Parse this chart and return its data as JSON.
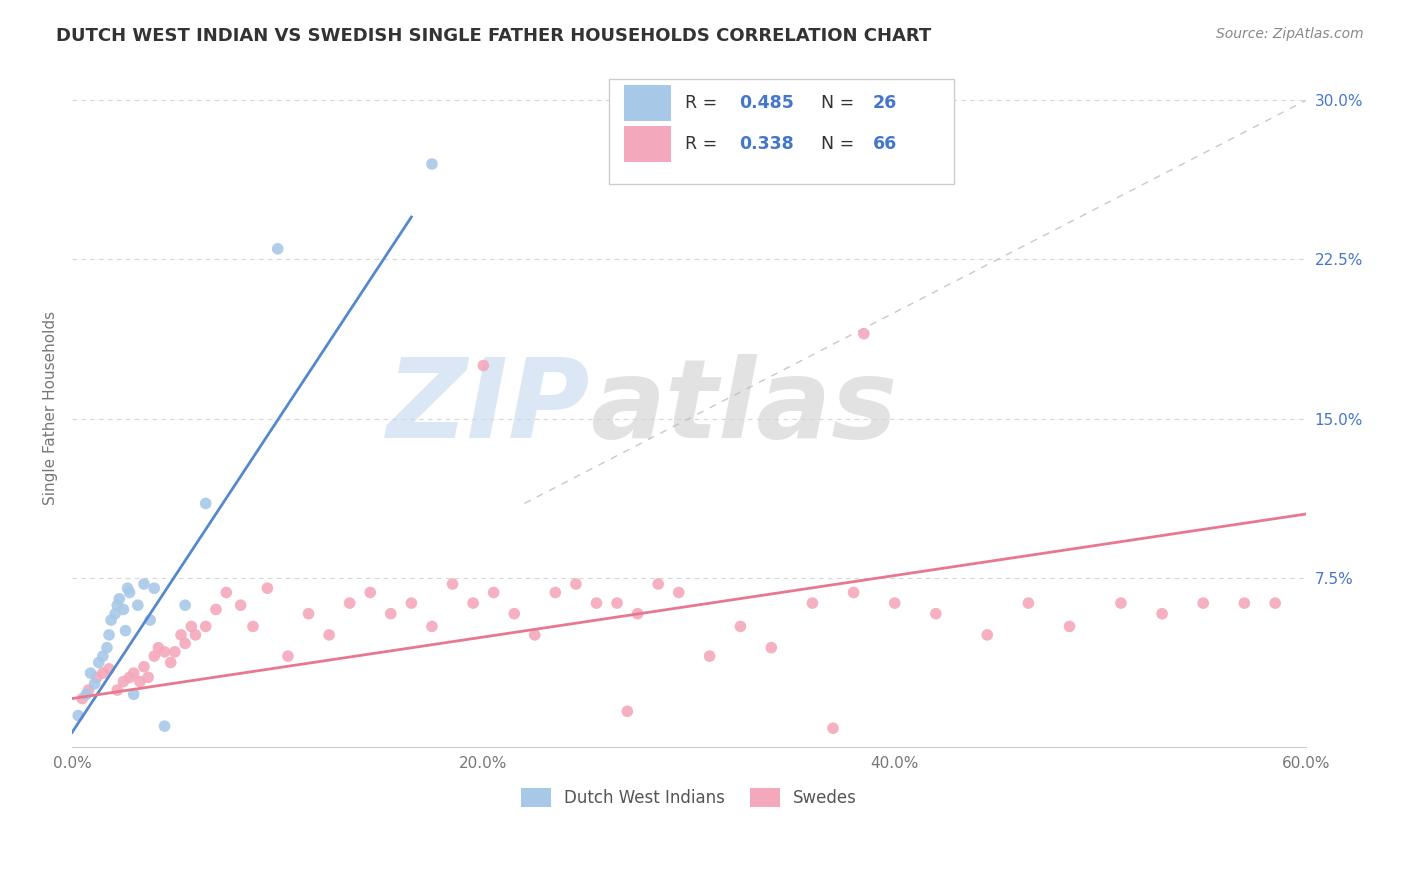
{
  "title": "DUTCH WEST INDIAN VS SWEDISH SINGLE FATHER HOUSEHOLDS CORRELATION CHART",
  "source": "Source: ZipAtlas.com",
  "ylabel": "Single Father Households",
  "watermark_zip": "ZIP",
  "watermark_atlas": "atlas",
  "xlim": [
    0.0,
    0.6
  ],
  "ylim": [
    -0.005,
    0.315
  ],
  "xticks": [
    0.0,
    0.1,
    0.2,
    0.3,
    0.4,
    0.5,
    0.6
  ],
  "xtick_labels": [
    "0.0%",
    "",
    "20.0%",
    "",
    "40.0%",
    "",
    "60.0%"
  ],
  "yticks_right": [
    0.3,
    0.225,
    0.15,
    0.075
  ],
  "ytick_right_labels": [
    "30.0%",
    "22.5%",
    "15.0%",
    "7.5%"
  ],
  "legend_label_blue": "Dutch West Indians",
  "legend_label_pink": "Swedes",
  "blue_color": "#a8c8e8",
  "pink_color": "#f4a8bc",
  "blue_line_color": "#5588cc",
  "pink_line_color": "#e87890",
  "text_blue_color": "#4477cc",
  "grid_color": "#cccccc",
  "title_color": "#333333",
  "blue_scatter_x": [
    0.003,
    0.007,
    0.009,
    0.011,
    0.013,
    0.015,
    0.017,
    0.018,
    0.019,
    0.021,
    0.022,
    0.023,
    0.025,
    0.026,
    0.027,
    0.028,
    0.03,
    0.032,
    0.035,
    0.038,
    0.04,
    0.045,
    0.055,
    0.065,
    0.1,
    0.175
  ],
  "blue_scatter_y": [
    0.01,
    0.02,
    0.03,
    0.025,
    0.035,
    0.038,
    0.042,
    0.048,
    0.055,
    0.058,
    0.062,
    0.065,
    0.06,
    0.05,
    0.07,
    0.068,
    0.02,
    0.062,
    0.072,
    0.055,
    0.07,
    0.005,
    0.062,
    0.11,
    0.23,
    0.27
  ],
  "pink_scatter_x": [
    0.005,
    0.008,
    0.012,
    0.015,
    0.018,
    0.022,
    0.025,
    0.028,
    0.03,
    0.033,
    0.035,
    0.037,
    0.04,
    0.042,
    0.045,
    0.048,
    0.05,
    0.053,
    0.055,
    0.058,
    0.06,
    0.065,
    0.07,
    0.075,
    0.082,
    0.088,
    0.095,
    0.105,
    0.115,
    0.125,
    0.135,
    0.145,
    0.155,
    0.165,
    0.175,
    0.185,
    0.195,
    0.205,
    0.215,
    0.225,
    0.235,
    0.245,
    0.255,
    0.265,
    0.275,
    0.285,
    0.295,
    0.31,
    0.325,
    0.34,
    0.36,
    0.38,
    0.4,
    0.42,
    0.445,
    0.465,
    0.485,
    0.51,
    0.53,
    0.55,
    0.57,
    0.585,
    0.2,
    0.385,
    0.27,
    0.37
  ],
  "pink_scatter_y": [
    0.018,
    0.022,
    0.028,
    0.03,
    0.032,
    0.022,
    0.026,
    0.028,
    0.03,
    0.026,
    0.033,
    0.028,
    0.038,
    0.042,
    0.04,
    0.035,
    0.04,
    0.048,
    0.044,
    0.052,
    0.048,
    0.052,
    0.06,
    0.068,
    0.062,
    0.052,
    0.07,
    0.038,
    0.058,
    0.048,
    0.063,
    0.068,
    0.058,
    0.063,
    0.052,
    0.072,
    0.063,
    0.068,
    0.058,
    0.048,
    0.068,
    0.072,
    0.063,
    0.063,
    0.058,
    0.072,
    0.068,
    0.038,
    0.052,
    0.042,
    0.063,
    0.068,
    0.063,
    0.058,
    0.048,
    0.063,
    0.052,
    0.063,
    0.058,
    0.063,
    0.063,
    0.063,
    0.175,
    0.19,
    0.012,
    0.004
  ],
  "blue_line_x": [
    0.0,
    0.165
  ],
  "blue_line_y": [
    0.002,
    0.245
  ],
  "pink_line_x": [
    0.0,
    0.6
  ],
  "pink_line_y": [
    0.018,
    0.105
  ],
  "dash_line_x": [
    0.22,
    0.6
  ],
  "dash_line_y": [
    0.11,
    0.3
  ]
}
